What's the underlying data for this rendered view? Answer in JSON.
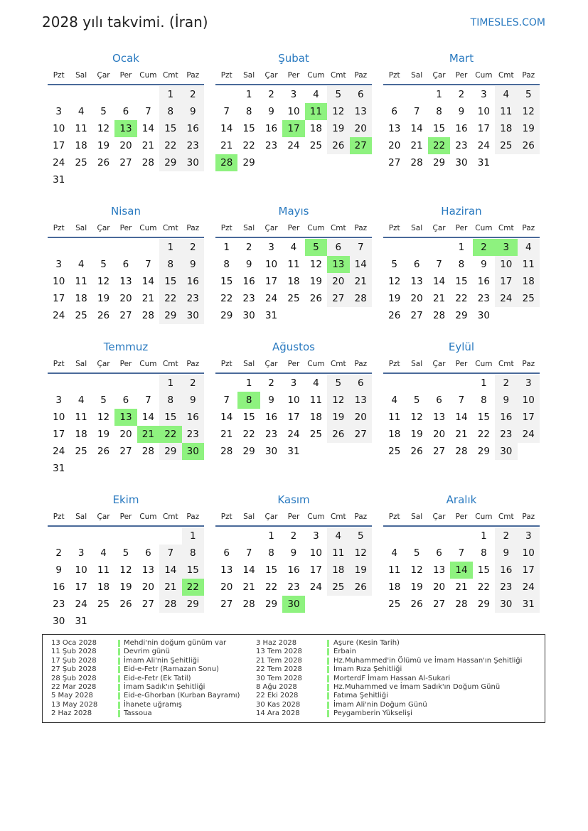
{
  "header": {
    "title": "2028 yılı takvimi. (İran)",
    "brand": "TIMESLES.COM"
  },
  "colors": {
    "accent": "#2a7ac0",
    "holiday": "#8ef27f",
    "weekend": "#f2f2f2"
  },
  "weekdays": [
    "Pzt",
    "Sal",
    "Çar",
    "Per",
    "Cum",
    "Cmt",
    "Paz"
  ],
  "months": [
    {
      "name": "Ocak",
      "start_weekday": 5,
      "days": 31,
      "holidays": [
        13
      ]
    },
    {
      "name": "Şubat",
      "start_weekday": 1,
      "days": 29,
      "holidays": [
        11,
        17,
        27,
        28
      ]
    },
    {
      "name": "Mart",
      "start_weekday": 2,
      "days": 31,
      "holidays": [
        22
      ]
    },
    {
      "name": "Nisan",
      "start_weekday": 5,
      "days": 30,
      "holidays": []
    },
    {
      "name": "Mayıs",
      "start_weekday": 0,
      "days": 31,
      "holidays": [
        5,
        13
      ]
    },
    {
      "name": "Haziran",
      "start_weekday": 3,
      "days": 30,
      "holidays": [
        2,
        3
      ]
    },
    {
      "name": "Temmuz",
      "start_weekday": 5,
      "days": 31,
      "holidays": [
        13,
        21,
        22,
        30
      ]
    },
    {
      "name": "Ağustos",
      "start_weekday": 1,
      "days": 31,
      "holidays": [
        8
      ]
    },
    {
      "name": "Eylül",
      "start_weekday": 4,
      "days": 30,
      "holidays": []
    },
    {
      "name": "Ekim",
      "start_weekday": 6,
      "days": 31,
      "holidays": [
        22
      ]
    },
    {
      "name": "Kasım",
      "start_weekday": 2,
      "days": 30,
      "holidays": [
        30
      ]
    },
    {
      "name": "Aralık",
      "start_weekday": 4,
      "days": 31,
      "holidays": [
        14
      ]
    }
  ],
  "holidays": [
    {
      "date": "13 Oca 2028",
      "name": "Mehdi'nin doğum günüm var"
    },
    {
      "date": "11 Şub 2028",
      "name": "Devrim günü"
    },
    {
      "date": "17 Şub 2028",
      "name": "İmam Ali'nin Şehitliği"
    },
    {
      "date": "27 Şub 2028",
      "name": "Eid-e-Fetr (Ramazan Sonu)"
    },
    {
      "date": "28 Şub 2028",
      "name": "Eid-e-Fetr (Ek Tatil)"
    },
    {
      "date": "22 Mar 2028",
      "name": "İmam Sadık'ın Şehitliği"
    },
    {
      "date": "5 May 2028",
      "name": "Eid-e-Ghorban (Kurban Bayramı)"
    },
    {
      "date": "13 May 2028",
      "name": "İhanete uğramış"
    },
    {
      "date": "2 Haz 2028",
      "name": "Tassoua"
    },
    {
      "date": "3 Haz 2028",
      "name": "Aşure (Kesin Tarih)"
    },
    {
      "date": "13 Tem 2028",
      "name": "Erbain"
    },
    {
      "date": "21 Tem 2028",
      "name": "Hz.Muhammed'in Ölümü ve İmam Hassan'ın Şehitliği"
    },
    {
      "date": "22 Tem 2028",
      "name": "İmam Rıza Şehitliği"
    },
    {
      "date": "30 Tem 2028",
      "name": "MorterdF İmam Hassan Al-Sukari"
    },
    {
      "date": "8 Ağu 2028",
      "name": "Hz.Muhammed ve İmam Sadık'ın Doğum Günü"
    },
    {
      "date": "22 Eki 2028",
      "name": "Fatıma Şehitliği"
    },
    {
      "date": "30 Kas 2028",
      "name": "İmam Ali'nin Doğum Günü"
    },
    {
      "date": "14 Ara 2028",
      "name": "Peygamberin Yükselişi"
    }
  ]
}
